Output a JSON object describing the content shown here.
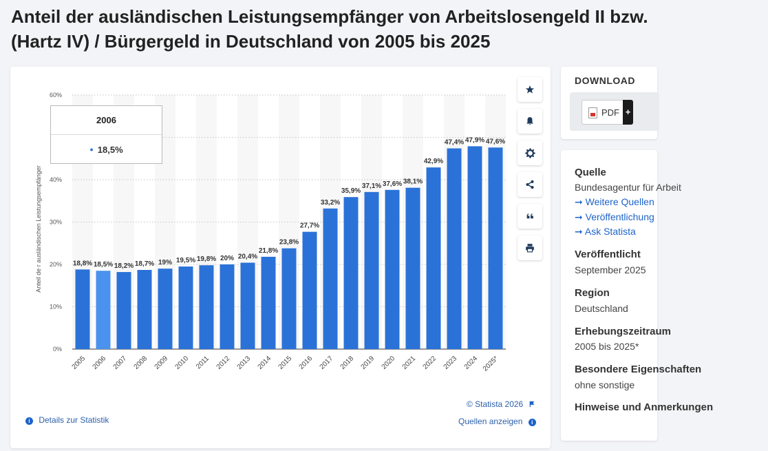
{
  "page": {
    "title_line1": "Anteil der ausländischen Leistungsempfänger von Arbeitslosengeld II bzw.",
    "title_line2": "(Hartz IV) / Bürgergeld in Deutschland von 2005 bis 2025"
  },
  "chart_data": {
    "type": "bar",
    "categories": [
      "2005",
      "2006",
      "2007",
      "2008",
      "2009",
      "2010",
      "2011",
      "2012",
      "2013",
      "2014",
      "2015",
      "2016",
      "2017",
      "2018",
      "2019",
      "2020",
      "2021",
      "2022",
      "2023",
      "2024",
      "2025*"
    ],
    "values": [
      18.8,
      18.5,
      18.2,
      18.7,
      19,
      19.5,
      19.8,
      20,
      20.4,
      21.8,
      23.8,
      27.7,
      33.2,
      35.9,
      37.1,
      37.6,
      38.1,
      42.9,
      47.4,
      47.9,
      47.6
    ],
    "data_labels": [
      "18,8%",
      "18,5%",
      "18,2%",
      "18,7%",
      "19%",
      "19,5%",
      "19,8%",
      "20%",
      "20,4%",
      "21,8%",
      "23,8%",
      "27,7%",
      "33,2%",
      "35,9%",
      "37,1%",
      "37,6%",
      "38,1%",
      "42,9%",
      "47,4%",
      "47,9%",
      "47,6%"
    ],
    "ylabel": "Anteil de r ausländischen Leistungsempfänger",
    "xlabel": "",
    "ylim": [
      0,
      60
    ],
    "yticks": [
      0,
      10,
      20,
      30,
      40,
      50,
      60
    ],
    "ytick_labels": [
      "0%",
      "10%",
      "20%",
      "30%",
      "40%",
      "",
      "60%"
    ],
    "highlighted_index": 1,
    "colors": {
      "bar": "#2b72d8",
      "bar_highlight": "#4a92ee",
      "band": "#f7f7f7"
    },
    "grid": true,
    "legend": "none"
  },
  "tooltip": {
    "title": "2006",
    "value": "18,5%"
  },
  "toolbar": [
    {
      "name": "favorite-button",
      "icon": "star-icon"
    },
    {
      "name": "notification-button",
      "icon": "bell-icon"
    },
    {
      "name": "settings-button",
      "icon": "gear-icon"
    },
    {
      "name": "share-button",
      "icon": "share-icon"
    },
    {
      "name": "cite-button",
      "icon": "quote-icon"
    },
    {
      "name": "print-button",
      "icon": "printer-icon"
    }
  ],
  "footer": {
    "copyright": "© Statista 2026",
    "details_link": "Details zur Statistik",
    "sources_link": "Quellen anzeigen"
  },
  "download": {
    "title": "DOWNLOAD",
    "pdf_label": "PDF",
    "plus": "+"
  },
  "info": {
    "source_label": "Quelle",
    "source_value": "Bundesagentur für Arbeit",
    "links": [
      "Weitere Quellen",
      "Veröffentlichung",
      "Ask Statista"
    ],
    "published_label": "Veröffentlicht",
    "published_value": "September 2025",
    "region_label": "Region",
    "region_value": "Deutschland",
    "period_label": "Erhebungszeitraum",
    "period_value": "2005 bis 2025*",
    "special_label": "Besondere Eigenschaften",
    "special_value": "ohne sonstige",
    "notes_label": "Hinweise und Anmerkungen"
  }
}
